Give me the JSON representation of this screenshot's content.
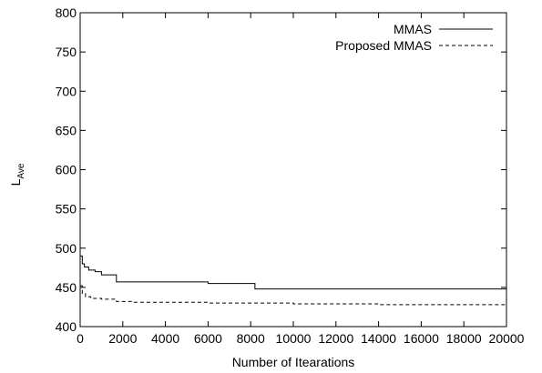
{
  "chart_data": {
    "type": "line",
    "title": "",
    "xlabel": "Number of Itearations",
    "ylabel": "L",
    "ylabel_sub": "Ave",
    "xlim": [
      0,
      20000
    ],
    "ylim": [
      400,
      800
    ],
    "x_ticks": [
      0,
      2000,
      4000,
      6000,
      8000,
      10000,
      12000,
      14000,
      16000,
      18000,
      20000
    ],
    "y_ticks": [
      400,
      450,
      500,
      550,
      600,
      650,
      700,
      750,
      800
    ],
    "grid": false,
    "legend_position": "top-right",
    "series": [
      {
        "name": "MMAS",
        "style": "solid",
        "x": [
          0,
          100,
          200,
          400,
          700,
          1000,
          1700,
          6000,
          8200,
          20000
        ],
        "y": [
          490,
          480,
          476,
          472,
          470,
          466,
          457,
          455,
          448,
          447
        ]
      },
      {
        "name": "Proposed MMAS",
        "style": "dashed",
        "x": [
          0,
          100,
          250,
          500,
          1000,
          1700,
          2500,
          6000,
          10000,
          14000,
          20000
        ],
        "y": [
          452,
          442,
          438,
          436,
          435,
          432,
          431,
          430,
          429,
          428,
          427
        ]
      }
    ]
  }
}
